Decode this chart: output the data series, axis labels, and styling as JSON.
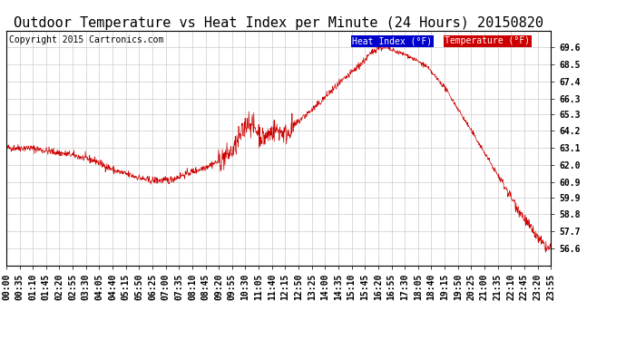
{
  "title": "Outdoor Temperature vs Heat Index per Minute (24 Hours) 20150820",
  "copyright": "Copyright 2015 Cartronics.com",
  "legend_labels": [
    "Heat Index (°F)",
    "Temperature (°F)"
  ],
  "legend_bg_colors": [
    "#0000cc",
    "#cc0000"
  ],
  "line_color": "#cc0000",
  "ylim": [
    55.5,
    70.7
  ],
  "yticks": [
    56.6,
    57.7,
    58.8,
    59.9,
    60.9,
    62.0,
    63.1,
    64.2,
    65.3,
    66.3,
    67.4,
    68.5,
    69.6
  ],
  "xtick_labels": [
    "00:00",
    "00:35",
    "01:10",
    "01:45",
    "02:20",
    "02:55",
    "03:30",
    "04:05",
    "04:40",
    "05:15",
    "05:50",
    "06:25",
    "07:00",
    "07:35",
    "08:10",
    "08:45",
    "09:20",
    "09:55",
    "10:30",
    "11:05",
    "11:40",
    "12:15",
    "12:50",
    "13:25",
    "14:00",
    "14:35",
    "15:10",
    "15:45",
    "16:20",
    "16:55",
    "17:30",
    "18:05",
    "18:40",
    "19:15",
    "19:50",
    "20:25",
    "21:00",
    "21:35",
    "22:10",
    "22:45",
    "23:20",
    "23:55"
  ],
  "grid_color": "#cccccc",
  "title_fontsize": 11,
  "copyright_fontsize": 7,
  "tick_fontsize": 7,
  "legend_fontsize": 7
}
